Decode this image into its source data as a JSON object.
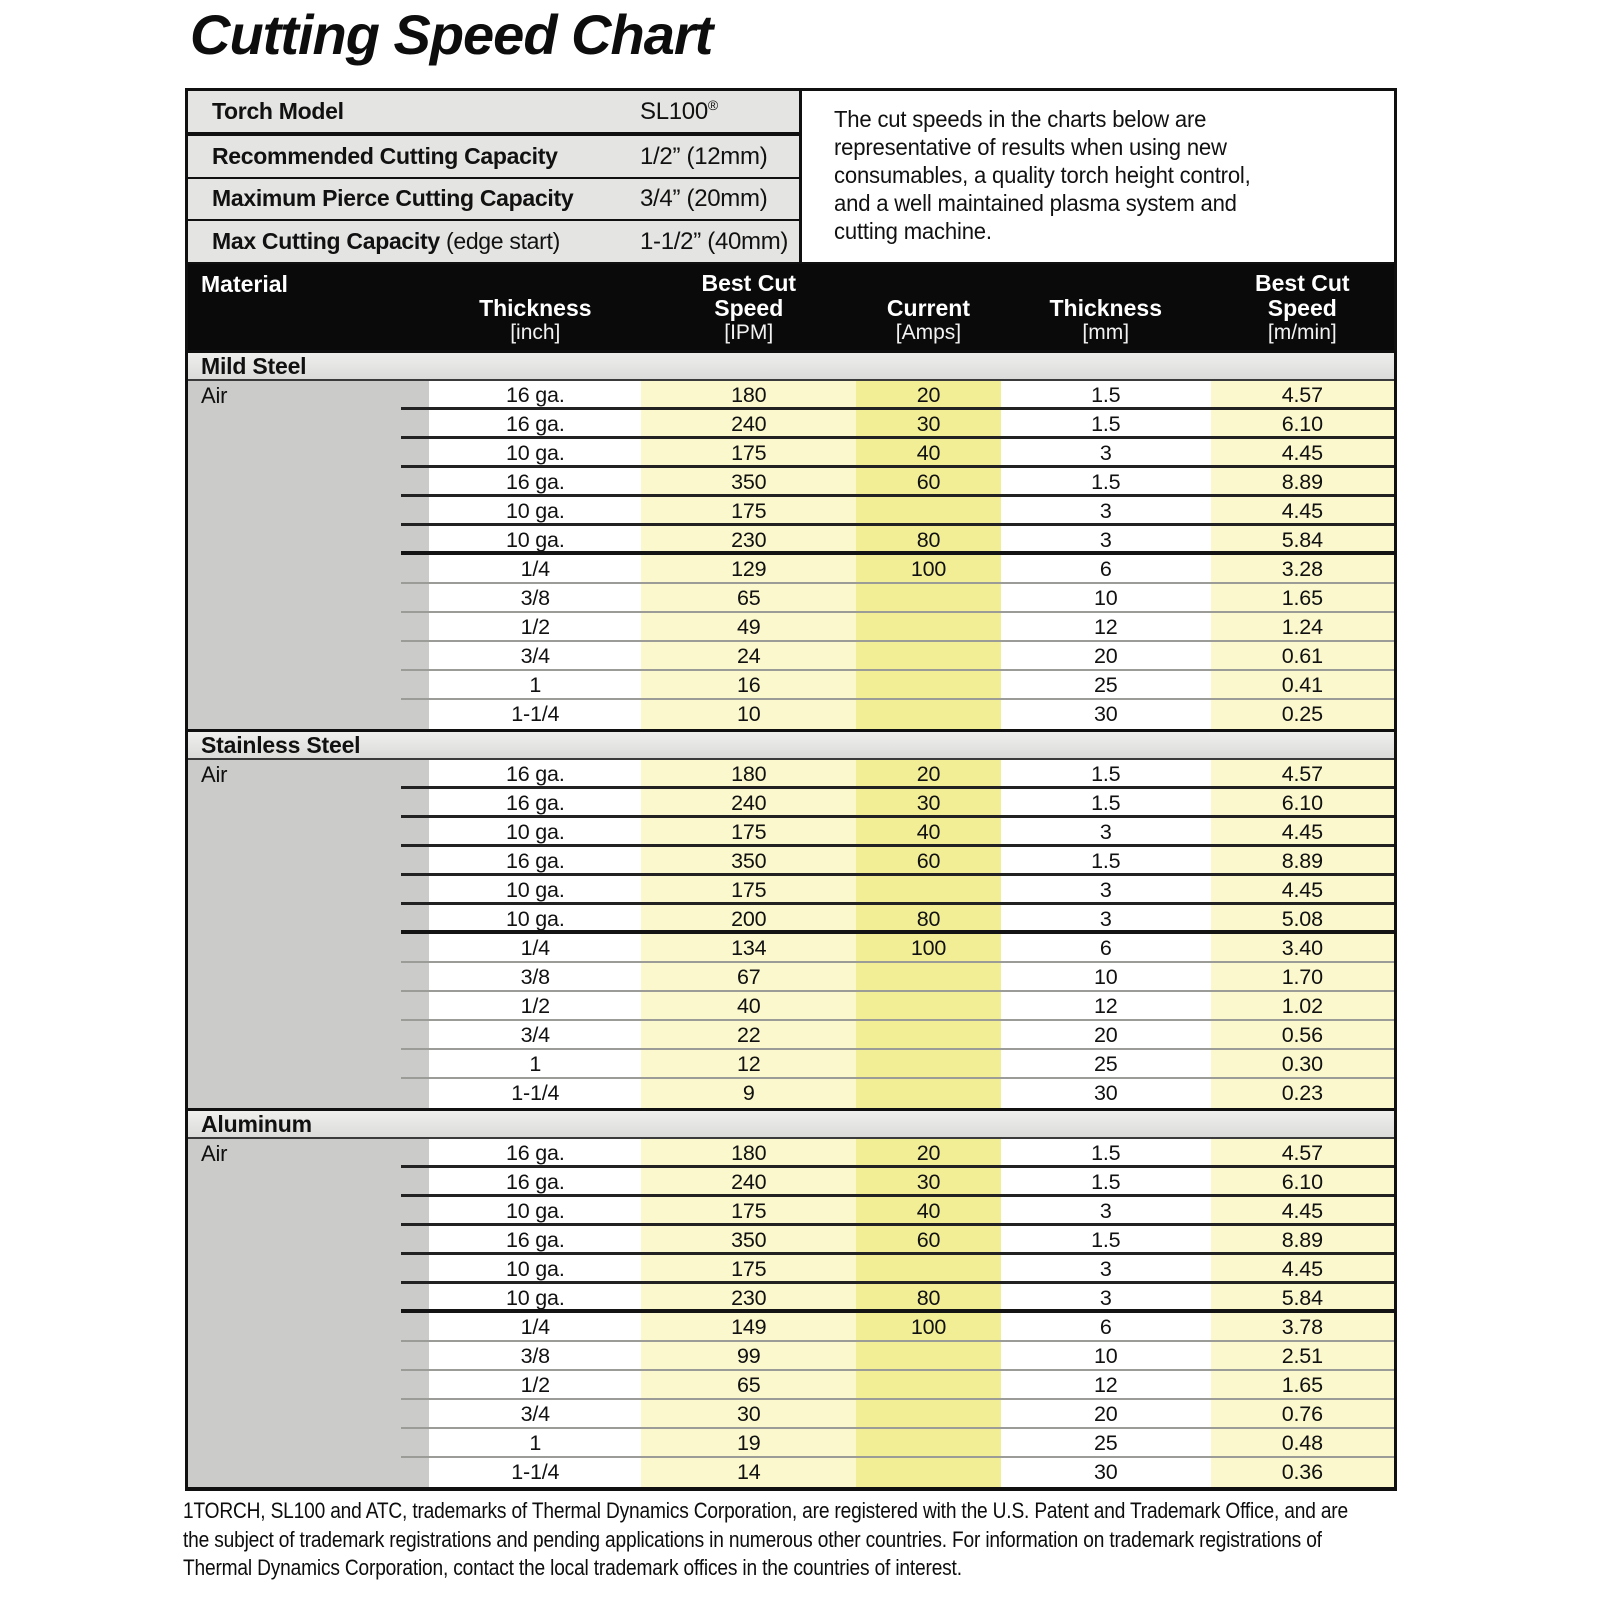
{
  "page_title": "Cutting Speed Chart",
  "specs": {
    "rows": [
      {
        "label": "Torch Model",
        "suffix": "",
        "value": "SL100",
        "sup": "®"
      },
      {
        "label": "Recommended Cutting Capacity",
        "suffix": "",
        "value": "1/2” (12mm)",
        "sup": ""
      },
      {
        "label": "Maximum Pierce Cutting Capacity",
        "suffix": "",
        "value": "3/4” (20mm)",
        "sup": ""
      },
      {
        "label": "Max Cutting Capacity",
        "suffix": " (edge start)",
        "value": "1-1/2” (40mm)",
        "sup": ""
      }
    ]
  },
  "note": "The cut speeds in the charts below are\nrepresentative of results when using new\nconsumables, a quality torch height control,\nand a well maintained plasma system and\ncutting machine.",
  "table": {
    "columns": [
      {
        "main": "Material",
        "unit": ""
      },
      {
        "main": "Thickness",
        "unit": "[inch]"
      },
      {
        "main": "Best Cut\nSpeed",
        "unit": "[IPM]"
      },
      {
        "main": "Current",
        "unit": "[Amps]"
      },
      {
        "main": "Thickness",
        "unit": "[mm]"
      },
      {
        "main": "Best Cut\nSpeed",
        "unit": "[m/min]"
      }
    ],
    "sections": [
      {
        "material": "Mild Steel",
        "gas": "Air",
        "rows": [
          [
            "16 ga.",
            "180",
            "20",
            "1.5",
            "4.57"
          ],
          [
            "16 ga.",
            "240",
            "30",
            "1.5",
            "6.10"
          ],
          [
            "10 ga.",
            "175",
            "40",
            "3",
            "4.45"
          ],
          [
            "16 ga.",
            "350",
            "60",
            "1.5",
            "8.89"
          ],
          [
            "10 ga.",
            "175",
            "",
            "3",
            "4.45"
          ],
          [
            "10 ga.",
            "230",
            "80",
            "3",
            "5.84"
          ],
          [
            "1/4",
            "129",
            "100",
            "6",
            "3.28"
          ],
          [
            "3/8",
            "65",
            "",
            "10",
            "1.65"
          ],
          [
            "1/2",
            "49",
            "",
            "12",
            "1.24"
          ],
          [
            "3/4",
            "24",
            "",
            "20",
            "0.61"
          ],
          [
            "1",
            "16",
            "",
            "25",
            "0.41"
          ],
          [
            "1-1/4",
            "10",
            "",
            "30",
            "0.25"
          ]
        ]
      },
      {
        "material": "Stainless Steel",
        "gas": "Air",
        "rows": [
          [
            "16 ga.",
            "180",
            "20",
            "1.5",
            "4.57"
          ],
          [
            "16 ga.",
            "240",
            "30",
            "1.5",
            "6.10"
          ],
          [
            "10 ga.",
            "175",
            "40",
            "3",
            "4.45"
          ],
          [
            "16 ga.",
            "350",
            "60",
            "1.5",
            "8.89"
          ],
          [
            "10 ga.",
            "175",
            "",
            "3",
            "4.45"
          ],
          [
            "10 ga.",
            "200",
            "80",
            "3",
            "5.08"
          ],
          [
            "1/4",
            "134",
            "100",
            "6",
            "3.40"
          ],
          [
            "3/8",
            "67",
            "",
            "10",
            "1.70"
          ],
          [
            "1/2",
            "40",
            "",
            "12",
            "1.02"
          ],
          [
            "3/4",
            "22",
            "",
            "20",
            "0.56"
          ],
          [
            "1",
            "12",
            "",
            "25",
            "0.30"
          ],
          [
            "1-1/4",
            "9",
            "",
            "30",
            "0.23"
          ]
        ]
      },
      {
        "material": "Aluminum",
        "gas": "Air",
        "rows": [
          [
            "16 ga.",
            "180",
            "20",
            "1.5",
            "4.57"
          ],
          [
            "16 ga.",
            "240",
            "30",
            "1.5",
            "6.10"
          ],
          [
            "10 ga.",
            "175",
            "40",
            "3",
            "4.45"
          ],
          [
            "16 ga.",
            "350",
            "60",
            "1.5",
            "8.89"
          ],
          [
            "10 ga.",
            "175",
            "",
            "3",
            "4.45"
          ],
          [
            "10 ga.",
            "230",
            "80",
            "3",
            "5.84"
          ],
          [
            "1/4",
            "149",
            "100",
            "6",
            "3.78"
          ],
          [
            "3/8",
            "99",
            "",
            "10",
            "2.51"
          ],
          [
            "1/2",
            "65",
            "",
            "12",
            "1.65"
          ],
          [
            "3/4",
            "30",
            "",
            "20",
            "0.76"
          ],
          [
            "1",
            "19",
            "",
            "25",
            "0.48"
          ],
          [
            "1-1/4",
            "14",
            "",
            "30",
            "0.36"
          ]
        ]
      }
    ]
  },
  "colors": {
    "highlight_light": "#faf8cc",
    "highlight_current": "#f2ee96",
    "gas_column": "#cbcbca",
    "header_bg": "#0a0a0a",
    "spec_panel_bg": "#e4e4e2"
  },
  "footer": "1TORCH, SL100 and ATC, trademarks of Thermal Dynamics Corporation, are registered with the U.S. Patent and Trademark Office, and are\nthe subject of trademark registrations and pending applications in numerous other countries.  For information on trademark registrations of\nThermal Dynamics Corporation, contact the local trademark offices in the countries of interest."
}
